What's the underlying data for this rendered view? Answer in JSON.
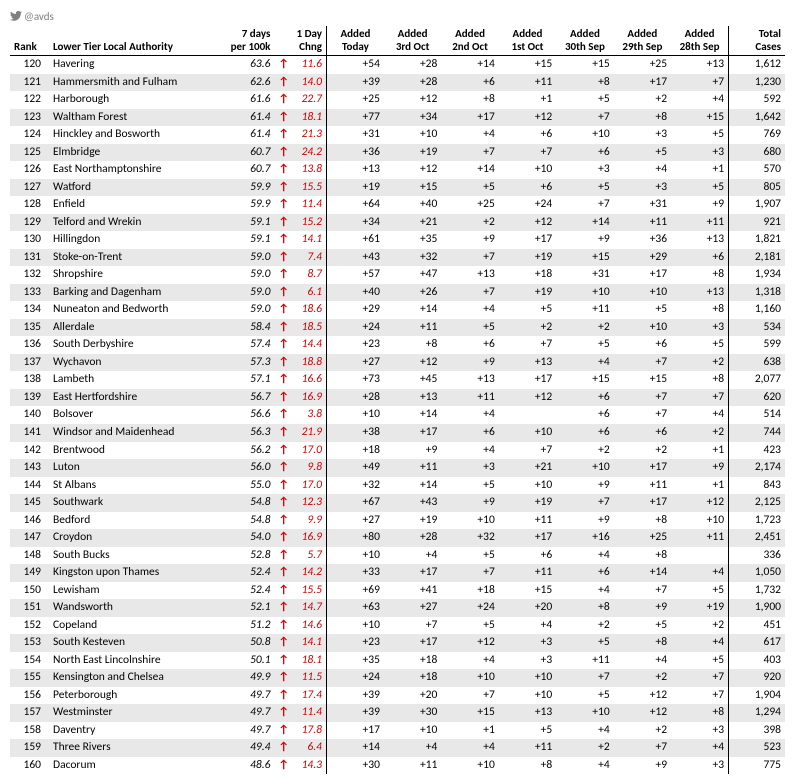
{
  "twitter_handle": "@avds",
  "columns": {
    "rank": "Rank",
    "name": "Lower Tier Local Authority",
    "per100": [
      "7 days",
      "per 100k"
    ],
    "chng": [
      "1 Day",
      "Chng"
    ],
    "added": [
      "Added\nToday",
      "Added\n3rd Oct",
      "Added\n2nd Oct",
      "Added\n1st Oct",
      "Added\n30th Sep",
      "Added\n29th Sep",
      "Added\n28th Sep"
    ],
    "total": [
      "Total",
      "Cases"
    ]
  },
  "arrow_glyph": "↑",
  "arrow_color": "#cc0000",
  "shade_color": "#e8e8e8",
  "rows": [
    {
      "rank": 120,
      "name": "Havering",
      "per100": "63.6",
      "chng": "11.6",
      "added": [
        "+54",
        "+28",
        "+14",
        "+15",
        "+15",
        "+25",
        "+13"
      ],
      "total": "1,612",
      "shade": false
    },
    {
      "rank": 121,
      "name": "Hammersmith and Fulham",
      "per100": "62.6",
      "chng": "14.0",
      "added": [
        "+39",
        "+28",
        "+6",
        "+11",
        "+8",
        "+17",
        "+7"
      ],
      "total": "1,230",
      "shade": true
    },
    {
      "rank": 122,
      "name": "Harborough",
      "per100": "61.6",
      "chng": "22.7",
      "added": [
        "+25",
        "+12",
        "+8",
        "+1",
        "+5",
        "+2",
        "+4"
      ],
      "total": "592",
      "shade": false
    },
    {
      "rank": 123,
      "name": "Waltham Forest",
      "per100": "61.4",
      "chng": "18.1",
      "added": [
        "+77",
        "+34",
        "+17",
        "+12",
        "+7",
        "+8",
        "+15"
      ],
      "total": "1,642",
      "shade": true
    },
    {
      "rank": 124,
      "name": "Hinckley and Bosworth",
      "per100": "61.4",
      "chng": "21.3",
      "added": [
        "+31",
        "+10",
        "+4",
        "+6",
        "+10",
        "+3",
        "+5"
      ],
      "total": "769",
      "shade": false
    },
    {
      "rank": 125,
      "name": "Elmbridge",
      "per100": "60.7",
      "chng": "24.2",
      "added": [
        "+36",
        "+19",
        "+7",
        "+7",
        "+6",
        "+5",
        "+3"
      ],
      "total": "680",
      "shade": true
    },
    {
      "rank": 126,
      "name": "East Northamptonshire",
      "per100": "60.7",
      "chng": "13.8",
      "added": [
        "+13",
        "+12",
        "+14",
        "+10",
        "+3",
        "+4",
        "+1"
      ],
      "total": "570",
      "shade": false
    },
    {
      "rank": 127,
      "name": "Watford",
      "per100": "59.9",
      "chng": "15.5",
      "added": [
        "+19",
        "+15",
        "+5",
        "+6",
        "+5",
        "+3",
        "+5"
      ],
      "total": "805",
      "shade": true
    },
    {
      "rank": 128,
      "name": "Enfield",
      "per100": "59.9",
      "chng": "11.4",
      "added": [
        "+64",
        "+40",
        "+25",
        "+24",
        "+7",
        "+31",
        "+9"
      ],
      "total": "1,907",
      "shade": false
    },
    {
      "rank": 129,
      "name": "Telford and Wrekin",
      "per100": "59.1",
      "chng": "15.2",
      "added": [
        "+34",
        "+21",
        "+2",
        "+12",
        "+14",
        "+11",
        "+11"
      ],
      "total": "921",
      "shade": true
    },
    {
      "rank": 130,
      "name": "Hillingdon",
      "per100": "59.1",
      "chng": "14.1",
      "added": [
        "+61",
        "+35",
        "+9",
        "+17",
        "+9",
        "+36",
        "+13"
      ],
      "total": "1,821",
      "shade": false
    },
    {
      "rank": 131,
      "name": "Stoke-on-Trent",
      "per100": "59.0",
      "chng": "7.4",
      "added": [
        "+43",
        "+32",
        "+7",
        "+19",
        "+15",
        "+29",
        "+6"
      ],
      "total": "2,181",
      "shade": true
    },
    {
      "rank": 132,
      "name": "Shropshire",
      "per100": "59.0",
      "chng": "8.7",
      "added": [
        "+57",
        "+47",
        "+13",
        "+18",
        "+31",
        "+17",
        "+8"
      ],
      "total": "1,934",
      "shade": false
    },
    {
      "rank": 133,
      "name": "Barking and Dagenham",
      "per100": "59.0",
      "chng": "6.1",
      "added": [
        "+40",
        "+26",
        "+7",
        "+19",
        "+10",
        "+10",
        "+13"
      ],
      "total": "1,318",
      "shade": true
    },
    {
      "rank": 134,
      "name": "Nuneaton and Bedworth",
      "per100": "59.0",
      "chng": "18.6",
      "added": [
        "+29",
        "+14",
        "+4",
        "+5",
        "+11",
        "+5",
        "+8"
      ],
      "total": "1,160",
      "shade": false
    },
    {
      "rank": 135,
      "name": "Allerdale",
      "per100": "58.4",
      "chng": "18.5",
      "added": [
        "+24",
        "+11",
        "+5",
        "+2",
        "+2",
        "+10",
        "+3"
      ],
      "total": "534",
      "shade": true
    },
    {
      "rank": 136,
      "name": "South Derbyshire",
      "per100": "57.4",
      "chng": "14.4",
      "added": [
        "+23",
        "+8",
        "+6",
        "+7",
        "+5",
        "+6",
        "+5"
      ],
      "total": "599",
      "shade": false
    },
    {
      "rank": 137,
      "name": "Wychavon",
      "per100": "57.3",
      "chng": "18.8",
      "added": [
        "+27",
        "+12",
        "+9",
        "+13",
        "+4",
        "+7",
        "+2"
      ],
      "total": "638",
      "shade": true
    },
    {
      "rank": 138,
      "name": "Lambeth",
      "per100": "57.1",
      "chng": "16.6",
      "added": [
        "+73",
        "+45",
        "+13",
        "+17",
        "+15",
        "+15",
        "+8"
      ],
      "total": "2,077",
      "shade": false
    },
    {
      "rank": 139,
      "name": "East Hertfordshire",
      "per100": "56.7",
      "chng": "16.9",
      "added": [
        "+28",
        "+13",
        "+11",
        "+12",
        "+6",
        "+7",
        "+7"
      ],
      "total": "620",
      "shade": true
    },
    {
      "rank": 140,
      "name": "Bolsover",
      "per100": "56.6",
      "chng": "3.8",
      "added": [
        "+10",
        "+14",
        "+4",
        "",
        "+6",
        "+7",
        "+4"
      ],
      "total": "514",
      "shade": false
    },
    {
      "rank": 141,
      "name": "Windsor and Maidenhead",
      "per100": "56.3",
      "chng": "21.9",
      "added": [
        "+38",
        "+17",
        "+6",
        "+10",
        "+6",
        "+6",
        "+2"
      ],
      "total": "744",
      "shade": true
    },
    {
      "rank": 142,
      "name": "Brentwood",
      "per100": "56.2",
      "chng": "17.0",
      "added": [
        "+18",
        "+9",
        "+4",
        "+7",
        "+2",
        "+2",
        "+1"
      ],
      "total": "423",
      "shade": false
    },
    {
      "rank": 143,
      "name": "Luton",
      "per100": "56.0",
      "chng": "9.8",
      "added": [
        "+49",
        "+11",
        "+3",
        "+21",
        "+10",
        "+17",
        "+9"
      ],
      "total": "2,174",
      "shade": true
    },
    {
      "rank": 144,
      "name": "St Albans",
      "per100": "55.0",
      "chng": "17.0",
      "added": [
        "+32",
        "+14",
        "+5",
        "+10",
        "+9",
        "+11",
        "+1"
      ],
      "total": "843",
      "shade": false
    },
    {
      "rank": 145,
      "name": "Southwark",
      "per100": "54.8",
      "chng": "12.3",
      "added": [
        "+67",
        "+43",
        "+9",
        "+19",
        "+7",
        "+17",
        "+12"
      ],
      "total": "2,125",
      "shade": true
    },
    {
      "rank": 146,
      "name": "Bedford",
      "per100": "54.8",
      "chng": "9.9",
      "added": [
        "+27",
        "+19",
        "+10",
        "+11",
        "+9",
        "+8",
        "+10"
      ],
      "total": "1,723",
      "shade": false
    },
    {
      "rank": 147,
      "name": "Croydon",
      "per100": "54.0",
      "chng": "16.9",
      "added": [
        "+80",
        "+28",
        "+32",
        "+17",
        "+16",
        "+25",
        "+11"
      ],
      "total": "2,451",
      "shade": true
    },
    {
      "rank": 148,
      "name": "South Bucks",
      "per100": "52.8",
      "chng": "5.7",
      "added": [
        "+10",
        "+4",
        "+5",
        "+6",
        "+4",
        "+8",
        ""
      ],
      "total": "336",
      "shade": false
    },
    {
      "rank": 149,
      "name": "Kingston upon Thames",
      "per100": "52.4",
      "chng": "14.2",
      "added": [
        "+33",
        "+17",
        "+7",
        "+11",
        "+6",
        "+14",
        "+4"
      ],
      "total": "1,050",
      "shade": true
    },
    {
      "rank": 150,
      "name": "Lewisham",
      "per100": "52.4",
      "chng": "15.5",
      "added": [
        "+69",
        "+41",
        "+18",
        "+15",
        "+4",
        "+7",
        "+5"
      ],
      "total": "1,732",
      "shade": false
    },
    {
      "rank": 151,
      "name": "Wandsworth",
      "per100": "52.1",
      "chng": "14.7",
      "added": [
        "+63",
        "+27",
        "+24",
        "+20",
        "+8",
        "+9",
        "+19"
      ],
      "total": "1,900",
      "shade": true
    },
    {
      "rank": 152,
      "name": "Copeland",
      "per100": "51.2",
      "chng": "14.6",
      "added": [
        "+10",
        "+7",
        "+5",
        "+4",
        "+2",
        "+5",
        "+2"
      ],
      "total": "451",
      "shade": false
    },
    {
      "rank": 153,
      "name": "South Kesteven",
      "per100": "50.8",
      "chng": "14.1",
      "added": [
        "+23",
        "+17",
        "+12",
        "+3",
        "+5",
        "+8",
        "+4"
      ],
      "total": "617",
      "shade": true
    },
    {
      "rank": 154,
      "name": "North East Lincolnshire",
      "per100": "50.1",
      "chng": "18.1",
      "added": [
        "+35",
        "+18",
        "+4",
        "+3",
        "+11",
        "+4",
        "+5"
      ],
      "total": "403",
      "shade": false
    },
    {
      "rank": 155,
      "name": "Kensington and Chelsea",
      "per100": "49.9",
      "chng": "11.5",
      "added": [
        "+24",
        "+18",
        "+10",
        "+10",
        "+7",
        "+2",
        "+7"
      ],
      "total": "920",
      "shade": true
    },
    {
      "rank": 156,
      "name": "Peterborough",
      "per100": "49.7",
      "chng": "17.4",
      "added": [
        "+39",
        "+20",
        "+7",
        "+10",
        "+5",
        "+12",
        "+7"
      ],
      "total": "1,904",
      "shade": false
    },
    {
      "rank": 157,
      "name": "Westminster",
      "per100": "49.7",
      "chng": "11.4",
      "added": [
        "+39",
        "+30",
        "+15",
        "+13",
        "+10",
        "+12",
        "+8"
      ],
      "total": "1,294",
      "shade": true
    },
    {
      "rank": 158,
      "name": "Daventry",
      "per100": "49.7",
      "chng": "17.8",
      "added": [
        "+17",
        "+10",
        "+1",
        "+5",
        "+4",
        "+2",
        "+3"
      ],
      "total": "398",
      "shade": false
    },
    {
      "rank": 159,
      "name": "Three Rivers",
      "per100": "49.4",
      "chng": "6.4",
      "added": [
        "+14",
        "+4",
        "+4",
        "+11",
        "+2",
        "+7",
        "+4"
      ],
      "total": "523",
      "shade": true
    },
    {
      "rank": 160,
      "name": "Dacorum",
      "per100": "48.6",
      "chng": "14.3",
      "added": [
        "+30",
        "+11",
        "+10",
        "+8",
        "+4",
        "+9",
        "+3"
      ],
      "total": "775",
      "shade": false
    }
  ]
}
